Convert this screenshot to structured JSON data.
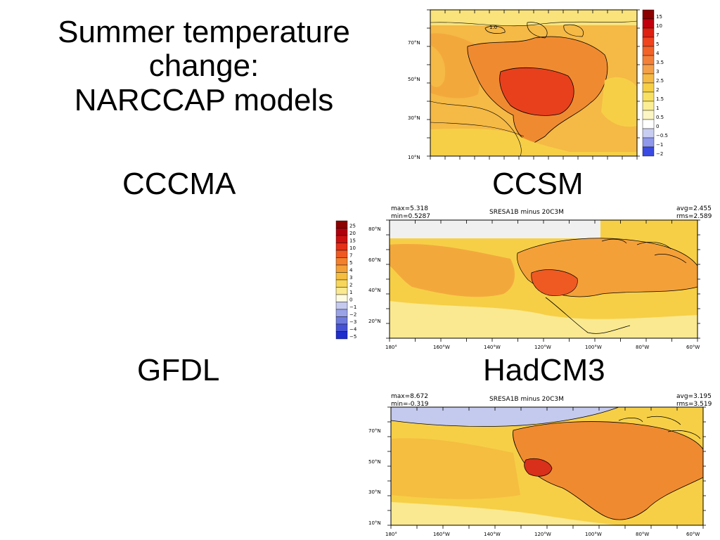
{
  "title": {
    "line1": "Summer temperature",
    "line2": "change:",
    "line3": "NARCCAP models"
  },
  "labels": {
    "cccma": "CCCMA",
    "ccsm": "CCSM",
    "gfdl": "GFDL",
    "hadcm3": "HadCM3"
  },
  "maps": {
    "ccsm": {
      "lat_ticks": [
        "70°N",
        "50°N",
        "30°N",
        "10°N"
      ],
      "legend": [
        "15",
        "10",
        "7",
        "5",
        "4",
        "3.5",
        "3",
        "2.5",
        "2",
        "1.5",
        "1",
        "0.5",
        "0",
        "−0.5",
        "−1",
        "−2"
      ],
      "legend_colors": [
        "#8b0000",
        "#c0000e",
        "#dd2012",
        "#ee4420",
        "#f2632a",
        "#f3803a",
        "#f4a04a",
        "#f5b945",
        "#f6cf46",
        "#f8e062",
        "#fbee94",
        "#fcf6c4",
        "#ffffff",
        "#c8cdf2",
        "#8f98ea",
        "#3a4ae2"
      ],
      "contour_label": "1.0"
    },
    "cccma": {
      "max_label": "max=5.318",
      "min_label": "min=0.5287",
      "subtitle": "SRESA1B  minus  20C3M",
      "avg_label": "avg=2.455",
      "rms_label": "rms=2.589",
      "lat_ticks": [
        "80°N",
        "60°N",
        "40°N",
        "20°N"
      ],
      "lon_ticks": [
        "180°",
        "160°W",
        "140°W",
        "120°W",
        "100°W",
        "80°W",
        "60°W"
      ],
      "legend": [
        "25",
        "20",
        "15",
        "10",
        "7",
        "5",
        "4",
        "3",
        "2",
        "1",
        "0",
        "−1",
        "−2",
        "−3",
        "−4",
        "−5"
      ],
      "legend_colors": [
        "#8b0000",
        "#b0000c",
        "#cc1010",
        "#e43018",
        "#ef5a22",
        "#f3802c",
        "#f4a038",
        "#f5be40",
        "#f7d65a",
        "#fae990",
        "#fdfbe2",
        "#c4c9ee",
        "#9aa3e6",
        "#6f7bdc",
        "#4652d4",
        "#1e2ecc"
      ]
    },
    "hadcm3": {
      "max_label": "max=8.672",
      "min_label": "min=-0.319",
      "subtitle": "SRESA1B  minus  20C3M",
      "avg_label": "avg=3.195",
      "rms_label": "rms=3.519",
      "lat_ticks": [
        "70°N",
        "50°N",
        "30°N",
        "10°N"
      ],
      "lon_ticks": [
        "180°",
        "160°W",
        "140°W",
        "120°W",
        "100°W",
        "80°W",
        "60°W"
      ]
    }
  }
}
